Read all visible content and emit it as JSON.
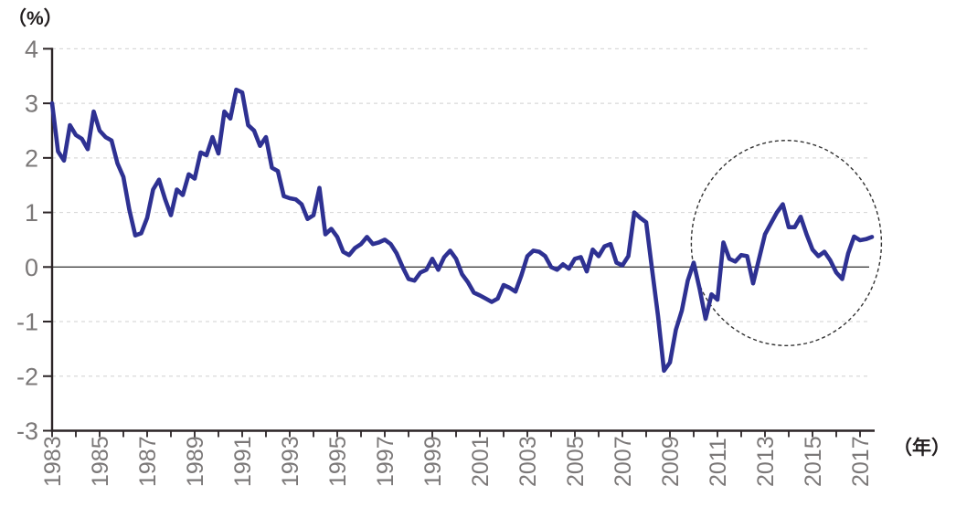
{
  "chart_data": {
    "type": "line",
    "title": "",
    "ylabel_unit": "（%）",
    "xlabel_unit": "（年）",
    "y_ticks": [
      4,
      3,
      2,
      1,
      0,
      -1,
      -2,
      -3
    ],
    "ylim": [
      -3,
      4
    ],
    "xlim": [
      1983,
      2017.6
    ],
    "x_tick_interval_years": 1,
    "x_tick_label_years": [
      1983,
      1985,
      1987,
      1989,
      1991,
      1993,
      1995,
      1997,
      1999,
      2001,
      2003,
      2005,
      2007,
      2009,
      2011,
      2013,
      2015,
      2017
    ],
    "grid": "horizontal-dashed",
    "zero_line": true,
    "legend": "none",
    "series": [
      {
        "name": "main-line",
        "x_start": 1983,
        "x_step": 0.25,
        "x_end": 2017.5,
        "values": [
          3.0,
          2.12,
          1.95,
          2.6,
          2.42,
          2.35,
          2.16,
          2.85,
          2.5,
          2.38,
          2.32,
          1.9,
          1.65,
          1.05,
          0.58,
          0.62,
          0.9,
          1.42,
          1.6,
          1.25,
          0.95,
          1.42,
          1.32,
          1.7,
          1.62,
          2.1,
          2.05,
          2.38,
          2.08,
          2.85,
          2.72,
          3.25,
          3.2,
          2.6,
          2.5,
          2.22,
          2.38,
          1.82,
          1.76,
          1.3,
          1.26,
          1.24,
          1.15,
          0.88,
          0.95,
          1.45,
          0.6,
          0.7,
          0.55,
          0.28,
          0.22,
          0.35,
          0.42,
          0.55,
          0.42,
          0.45,
          0.5,
          0.42,
          0.25,
          0.0,
          -0.22,
          -0.25,
          -0.1,
          -0.05,
          0.15,
          -0.05,
          0.18,
          0.3,
          0.15,
          -0.13,
          -0.28,
          -0.47,
          -0.52,
          -0.58,
          -0.64,
          -0.58,
          -0.33,
          -0.38,
          -0.45,
          -0.15,
          0.2,
          0.3,
          0.28,
          0.2,
          0.0,
          -0.05,
          0.05,
          -0.03,
          0.15,
          0.18,
          -0.08,
          0.32,
          0.2,
          0.38,
          0.42,
          0.08,
          0.03,
          0.2,
          1.0,
          0.9,
          0.82,
          -0.05,
          -0.9,
          -1.9,
          -1.75,
          -1.15,
          -0.8,
          -0.25,
          0.08,
          -0.4,
          -0.95,
          -0.5,
          -0.6,
          0.45,
          0.15,
          0.1,
          0.22,
          0.2,
          -0.3,
          0.15,
          0.6,
          0.8,
          1.0,
          1.15,
          0.73,
          0.73,
          0.92,
          0.6,
          0.32,
          0.2,
          0.28,
          0.12,
          -0.1,
          -0.22,
          0.25,
          0.56,
          0.49,
          0.51,
          0.55
        ]
      }
    ],
    "annotation": {
      "shape": "dashed-ellipse",
      "center_year": 2013.9,
      "center_value": 0.44,
      "radius_years": 4.0,
      "radius_value": 1.88
    },
    "colors": {
      "line": "#2e3192",
      "axis": "#2b2426",
      "tick_label": "#7b7878",
      "grid": "#d9d9d9",
      "zero_line": "#404040",
      "annotation": "#333333",
      "unit_label": "#221e1f"
    }
  }
}
